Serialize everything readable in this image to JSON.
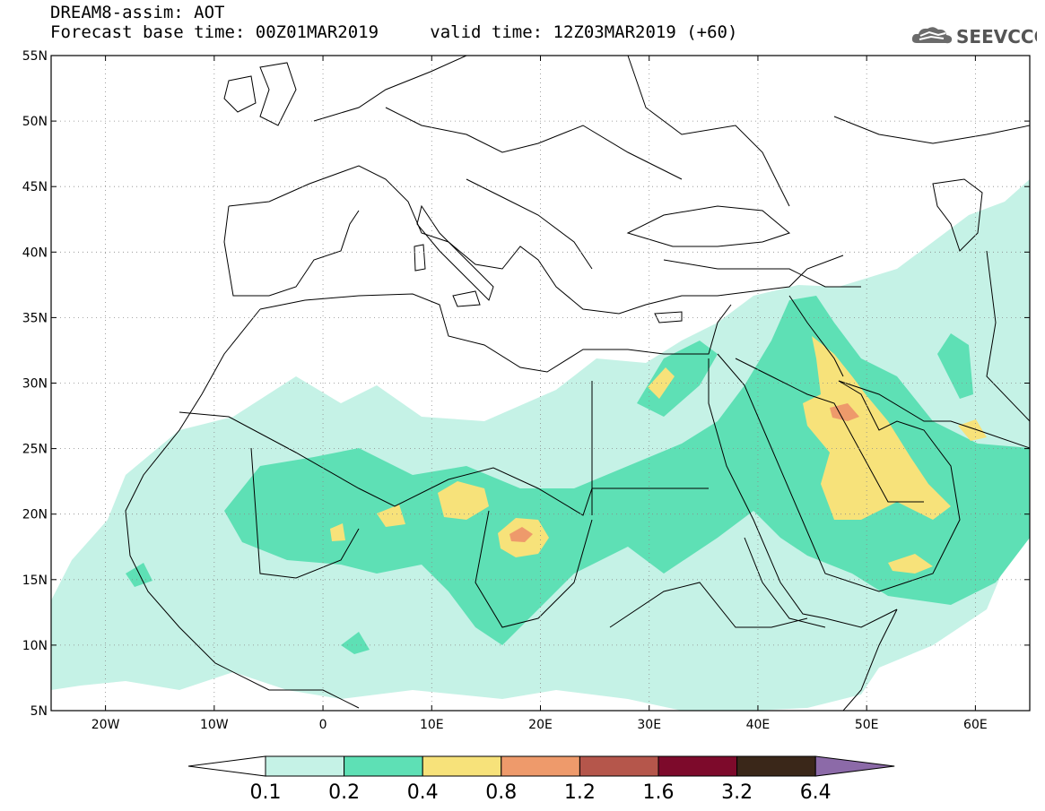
{
  "header": {
    "title": "DREAM8-assim: AOT",
    "base_time_label": "Forecast base time: 00Z01MAR2019",
    "valid_time_label": "valid time: 12Z03MAR2019 (+60)"
  },
  "logo": {
    "text": "SEEVCCC",
    "icon": "cloud-logo-icon"
  },
  "map": {
    "lon_range": [
      -25,
      65
    ],
    "lat_range": [
      5,
      55
    ],
    "lat_ticks": [
      "55N",
      "50N",
      "45N",
      "40N",
      "35N",
      "30N",
      "25N",
      "20N",
      "15N",
      "10N",
      "5N"
    ],
    "lon_ticks": [
      "20W",
      "10W",
      "0",
      "10E",
      "20E",
      "30E",
      "40E",
      "50E",
      "60E"
    ]
  },
  "colorbar": {
    "labels": [
      "0.1",
      "0.2",
      "0.4",
      "0.8",
      "1.2",
      "1.6",
      "3.2",
      "6.4"
    ],
    "colors": [
      "#ffffff",
      "#c5f2e6",
      "#5ee0b5",
      "#f7e27a",
      "#ee9a6b",
      "#b5564b",
      "#7d0a2b",
      "#3a2719",
      "#8c6aa8"
    ]
  }
}
